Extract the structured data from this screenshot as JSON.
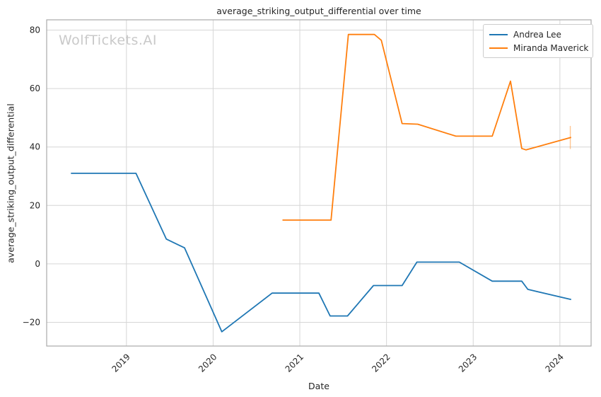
{
  "watermark": "WolfTickets.AI",
  "chart_data": {
    "type": "line",
    "title": "average_striking_output_differential over time",
    "xlabel": "Date",
    "ylabel": "average_striking_output_differential",
    "x_range": [
      2018.08,
      2024.36
    ],
    "y_range": [
      -28.1,
      83.5
    ],
    "x_ticks": [
      2019,
      2020,
      2021,
      2022,
      2023,
      2024
    ],
    "y_ticks": [
      -20,
      0,
      20,
      40,
      60,
      80
    ],
    "grid": true,
    "legend_position": "upper right",
    "colors": {
      "grid": "#d6d6d6",
      "spine": "#ababab",
      "text": "#262626",
      "watermark": "#c9c9c9"
    },
    "series": [
      {
        "name": "Andrea Lee",
        "color": "#1f77b4",
        "points": [
          [
            2018.36,
            31.0
          ],
          [
            2019.11,
            31.0
          ],
          [
            2019.46,
            8.5
          ],
          [
            2019.67,
            5.5
          ],
          [
            2020.1,
            -23.2
          ],
          [
            2020.68,
            -10.0
          ],
          [
            2021.22,
            -10.0
          ],
          [
            2021.35,
            -17.8
          ],
          [
            2021.55,
            -17.8
          ],
          [
            2021.85,
            -7.4
          ],
          [
            2022.18,
            -7.4
          ],
          [
            2022.35,
            0.6
          ],
          [
            2022.84,
            0.6
          ],
          [
            2023.22,
            -5.9
          ],
          [
            2023.56,
            -5.9
          ],
          [
            2023.63,
            -8.7
          ],
          [
            2024.13,
            -12.2
          ]
        ]
      },
      {
        "name": "Miranda Maverick",
        "color": "#ff7f0e",
        "points": [
          [
            2020.8,
            15.0
          ],
          [
            2021.36,
            15.0
          ],
          [
            2021.56,
            78.5
          ],
          [
            2021.86,
            78.5
          ],
          [
            2021.94,
            76.5
          ],
          [
            2022.18,
            48.0
          ],
          [
            2022.36,
            47.8
          ],
          [
            2022.8,
            43.7
          ],
          [
            2023.22,
            43.7
          ],
          [
            2023.43,
            62.5
          ],
          [
            2023.56,
            39.5
          ],
          [
            2023.61,
            39.0
          ],
          [
            2024.13,
            43.3
          ]
        ],
        "error_bar": {
          "x": 2024.12,
          "y_low": 39.3,
          "y_high": 47.2
        }
      }
    ]
  }
}
